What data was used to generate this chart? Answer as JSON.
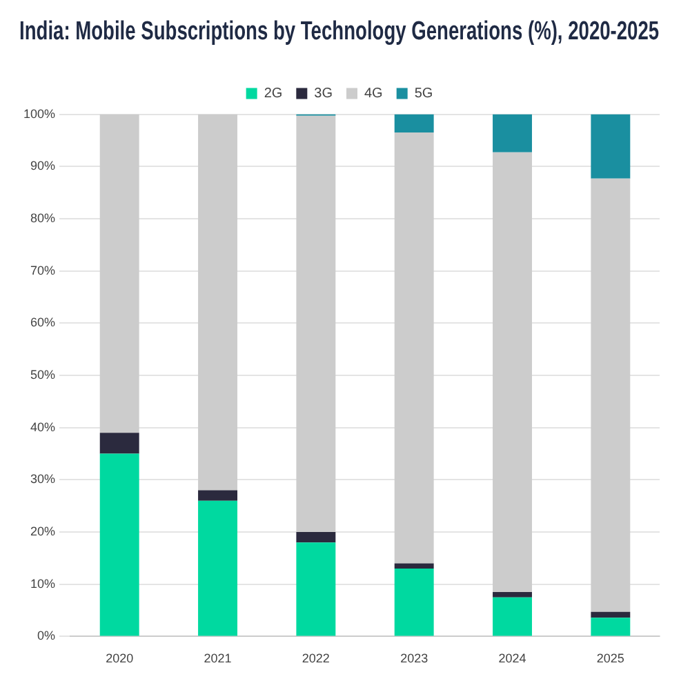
{
  "chart_data": {
    "type": "bar",
    "title": "India: Mobile Subscriptions by Technology Generations (%), 2020-2025",
    "categories": [
      "2020",
      "2021",
      "2022",
      "2023",
      "2024",
      "2025"
    ],
    "stacked": true,
    "series": [
      {
        "name": "2G",
        "color": "#00d9a0",
        "values": [
          35,
          26,
          18,
          13,
          7.5,
          3.6
        ]
      },
      {
        "name": "3G",
        "color": "#2b2a3e",
        "values": [
          4,
          2,
          2,
          1,
          1,
          1.1
        ]
      },
      {
        "name": "4G",
        "color": "#cccccc",
        "values": [
          61,
          72,
          79.7,
          82.5,
          84.2,
          83
        ]
      },
      {
        "name": "5G",
        "color": "#1a8fa0",
        "values": [
          0,
          0,
          0.3,
          3.5,
          7.3,
          12.3
        ]
      }
    ],
    "ylim": [
      0,
      100
    ],
    "yticks": [
      {
        "value": 0,
        "label": "0%"
      },
      {
        "value": 10,
        "label": "10%"
      },
      {
        "value": 20,
        "label": "20%"
      },
      {
        "value": 30,
        "label": "30%"
      },
      {
        "value": 40,
        "label": "40%"
      },
      {
        "value": 50,
        "label": "50%"
      },
      {
        "value": 60,
        "label": "60%"
      },
      {
        "value": 70,
        "label": "70%"
      },
      {
        "value": 80,
        "label": "80%"
      },
      {
        "value": 90,
        "label": "90%"
      },
      {
        "value": 100,
        "label": "100%"
      }
    ],
    "grid": "y",
    "legend": "top"
  }
}
